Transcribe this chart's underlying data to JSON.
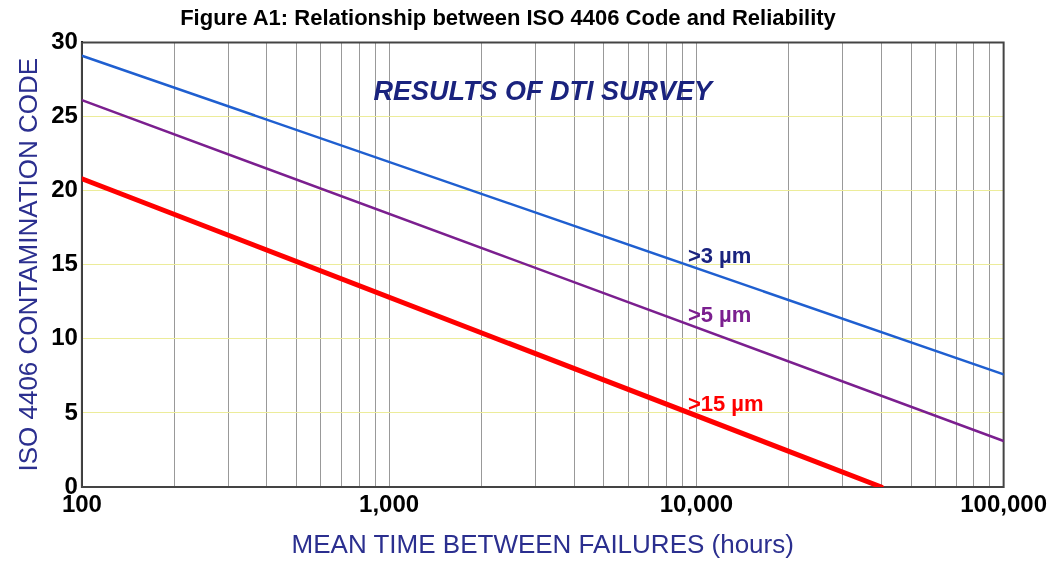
{
  "chart_data": {
    "type": "line",
    "title": "Figure A1: Relationship between ISO 4406 Code and Reliability",
    "annotations": [
      "RESULTS OF DTI SURVEY"
    ],
    "xlabel": "MEAN TIME BETWEEN FAILURES (hours)",
    "ylabel": "ISO 4406 CONTAMINATION CODE",
    "log": "x",
    "grid": true,
    "marker": "none",
    "line_style": "solid",
    "xlim": [
      100,
      100000
    ],
    "ylim": [
      0,
      30
    ],
    "xticks": [
      {
        "value": 100,
        "label": "100"
      },
      {
        "value": 200,
        "label": null
      },
      {
        "value": 300,
        "label": null
      },
      {
        "value": 400,
        "label": null
      },
      {
        "value": 500,
        "label": null
      },
      {
        "value": 600,
        "label": null
      },
      {
        "value": 700,
        "label": null
      },
      {
        "value": 800,
        "label": null
      },
      {
        "value": 900,
        "label": null
      },
      {
        "value": 1000,
        "label": "1,000"
      },
      {
        "value": 2000,
        "label": null
      },
      {
        "value": 3000,
        "label": null
      },
      {
        "value": 4000,
        "label": null
      },
      {
        "value": 5000,
        "label": null
      },
      {
        "value": 6000,
        "label": null
      },
      {
        "value": 7000,
        "label": null
      },
      {
        "value": 8000,
        "label": null
      },
      {
        "value": 9000,
        "label": null
      },
      {
        "value": 10000,
        "label": "10,000"
      },
      {
        "value": 20000,
        "label": null
      },
      {
        "value": 30000,
        "label": null
      },
      {
        "value": 40000,
        "label": null
      },
      {
        "value": 50000,
        "label": null
      },
      {
        "value": 60000,
        "label": null
      },
      {
        "value": 70000,
        "label": null
      },
      {
        "value": 80000,
        "label": null
      },
      {
        "value": 90000,
        "label": null
      },
      {
        "value": 100000,
        "label": "100,000"
      }
    ],
    "yticks": [
      0,
      5,
      10,
      15,
      20,
      25,
      30
    ],
    "series": [
      {
        "name": ">3 µm",
        "color": "#1f5fd0",
        "x": [
          100,
          100000
        ],
        "values": [
          29.1,
          7.6
        ]
      },
      {
        "name": ">5 µm",
        "color": "#7b1f8f",
        "x": [
          100,
          100000
        ],
        "values": [
          26.1,
          3.1
        ]
      },
      {
        "name": ">15 µm",
        "color": "#ff0000",
        "x": [
          100,
          40000
        ],
        "values": [
          20.8,
          0
        ]
      }
    ]
  }
}
